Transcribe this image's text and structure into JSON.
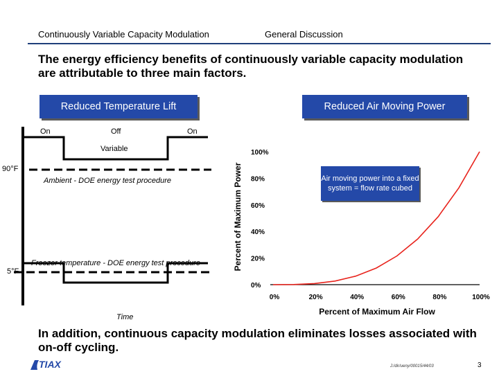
{
  "header": {
    "left_title": "Continuously Variable Capacity Modulation",
    "right_title": "General Discussion"
  },
  "headline": "The energy efficiency benefits of continuously variable capacity modulation are attributable to three main factors.",
  "left_panel": {
    "title": "Reduced Temperature Lift",
    "label_on_1": "On",
    "label_off": "Off",
    "label_on_2": "On",
    "label_variable": "Variable",
    "label_90f": "90°F",
    "label_5f": "5°F",
    "label_ambient": "Ambient - DOE energy test procedure",
    "label_freezer": "Freezer temperature - DOE energy test procedure",
    "label_time": "Time"
  },
  "right_panel": {
    "title": "Reduced Air Moving Power",
    "callout": "Air moving power into a fixed system = flow rate cubed"
  },
  "chart_data": {
    "type": "line",
    "xlabel": "Percent of Maximum Air Flow",
    "ylabel": "Percent of Maximum Power",
    "xlim": [
      0,
      100
    ],
    "ylim": [
      0,
      100
    ],
    "x_tick_labels": [
      "0%",
      "20%",
      "40%",
      "60%",
      "80%",
      "100%"
    ],
    "y_tick_labels": [
      "0%",
      "20%",
      "40%",
      "60%",
      "80%",
      "100%"
    ],
    "x_ticks": [
      0,
      20,
      40,
      60,
      80,
      100
    ],
    "y_ticks": [
      0,
      20,
      40,
      60,
      80,
      100
    ],
    "series": [
      {
        "color": "#e8231c",
        "x": [
          0,
          10,
          20,
          30,
          40,
          50,
          60,
          70,
          80,
          90,
          100
        ],
        "y": [
          0,
          0.1,
          0.8,
          2.7,
          6.4,
          12.5,
          21.6,
          34.3,
          51.2,
          72.9,
          100
        ]
      }
    ]
  },
  "footer": {
    "text": "In addition, continuous capacity modulation eliminates losses associated with on-off cycling.",
    "doc_id": "J:/dir/ueny/00015/44/03",
    "page_number": "3",
    "logo_text": "TIAX"
  }
}
